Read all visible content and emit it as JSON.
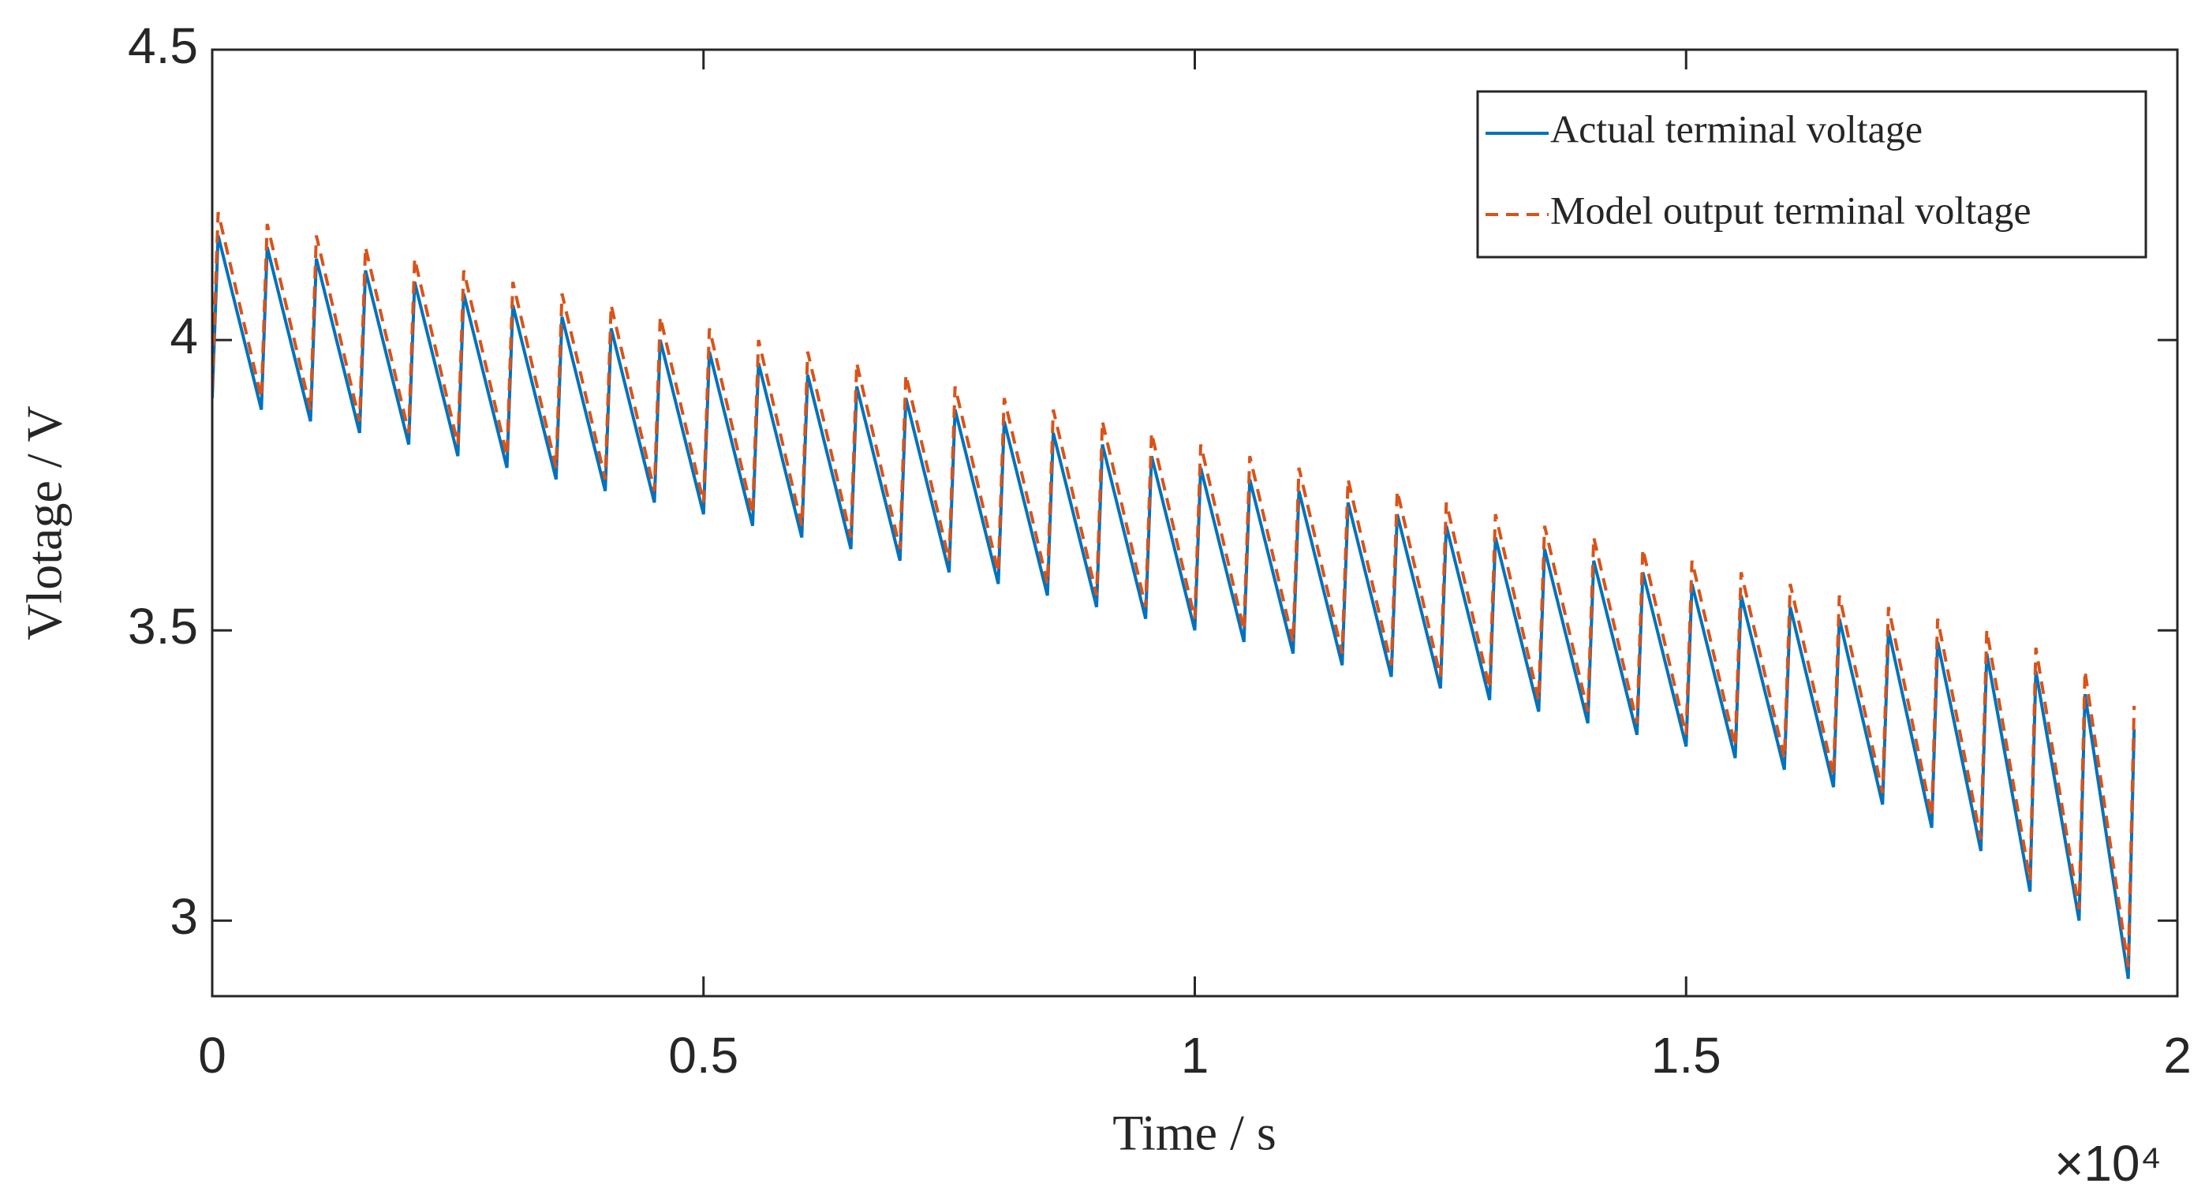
{
  "chart_data": {
    "type": "line",
    "xlabel": "Time / s",
    "ylabel": "Vlotage / V",
    "x_multiplier": "×10⁴",
    "xlim": [
      0,
      20000
    ],
    "ylim": [
      2.87,
      4.5
    ],
    "xticks": [
      0,
      {
        "value": 5000,
        "label": "0.5"
      },
      {
        "value": 10000,
        "label": "1"
      },
      {
        "value": 15000,
        "label": "1.5"
      },
      {
        "value": 20000,
        "label": "2"
      }
    ],
    "yticks": [
      3,
      3.5,
      4,
      4.5
    ],
    "legend": "upper right",
    "x": [
      0,
      60,
      500,
      560,
      1000,
      1060,
      1500,
      1560,
      2000,
      2060,
      2500,
      2560,
      3000,
      3060,
      3500,
      3560,
      4000,
      4060,
      4500,
      4560,
      5000,
      5060,
      5500,
      5560,
      6000,
      6060,
      6500,
      6560,
      7000,
      7060,
      7500,
      7560,
      8000,
      8060,
      8500,
      8560,
      9000,
      9060,
      9500,
      9560,
      10000,
      10060,
      10500,
      10560,
      11000,
      11060,
      11500,
      11560,
      12000,
      12060,
      12500,
      12560,
      13000,
      13060,
      13500,
      13560,
      14000,
      14060,
      14500,
      14560,
      15000,
      15060,
      15500,
      15560,
      16000,
      16060,
      16500,
      16560,
      17000,
      17060,
      17500,
      17560,
      18000,
      18060,
      18500,
      18560,
      19000,
      19060,
      19500,
      19560
    ],
    "series": [
      {
        "name": "Actual terminal voltage",
        "color": "#0072bd",
        "dash": false,
        "values": [
          3.9,
          4.18,
          3.88,
          4.16,
          3.86,
          4.14,
          3.84,
          4.12,
          3.82,
          4.1,
          3.8,
          4.08,
          3.78,
          4.06,
          3.76,
          4.04,
          3.74,
          4.02,
          3.72,
          4.0,
          3.7,
          3.98,
          3.68,
          3.96,
          3.66,
          3.94,
          3.64,
          3.92,
          3.62,
          3.9,
          3.6,
          3.88,
          3.58,
          3.86,
          3.56,
          3.84,
          3.54,
          3.82,
          3.52,
          3.8,
          3.5,
          3.78,
          3.48,
          3.76,
          3.46,
          3.74,
          3.44,
          3.72,
          3.42,
          3.7,
          3.4,
          3.68,
          3.38,
          3.66,
          3.36,
          3.64,
          3.34,
          3.62,
          3.32,
          3.6,
          3.3,
          3.58,
          3.28,
          3.56,
          3.26,
          3.54,
          3.23,
          3.52,
          3.2,
          3.5,
          3.16,
          3.48,
          3.12,
          3.46,
          3.05,
          3.43,
          3.0,
          3.39,
          2.9,
          3.33
        ]
      },
      {
        "name": "Model output terminal voltage",
        "color": "#d95319",
        "dash": true,
        "values": [
          3.92,
          4.22,
          3.9,
          4.2,
          3.88,
          4.18,
          3.86,
          4.16,
          3.84,
          4.14,
          3.82,
          4.12,
          3.8,
          4.1,
          3.78,
          4.08,
          3.76,
          4.06,
          3.74,
          4.04,
          3.72,
          4.02,
          3.7,
          4.0,
          3.68,
          3.98,
          3.66,
          3.96,
          3.64,
          3.94,
          3.62,
          3.92,
          3.6,
          3.9,
          3.58,
          3.88,
          3.56,
          3.86,
          3.54,
          3.84,
          3.52,
          3.82,
          3.5,
          3.8,
          3.48,
          3.78,
          3.46,
          3.76,
          3.44,
          3.74,
          3.42,
          3.72,
          3.4,
          3.7,
          3.38,
          3.68,
          3.36,
          3.66,
          3.34,
          3.64,
          3.32,
          3.62,
          3.3,
          3.6,
          3.28,
          3.58,
          3.25,
          3.56,
          3.22,
          3.54,
          3.18,
          3.52,
          3.14,
          3.5,
          3.07,
          3.47,
          3.02,
          3.43,
          2.92,
          3.37
        ]
      }
    ]
  }
}
